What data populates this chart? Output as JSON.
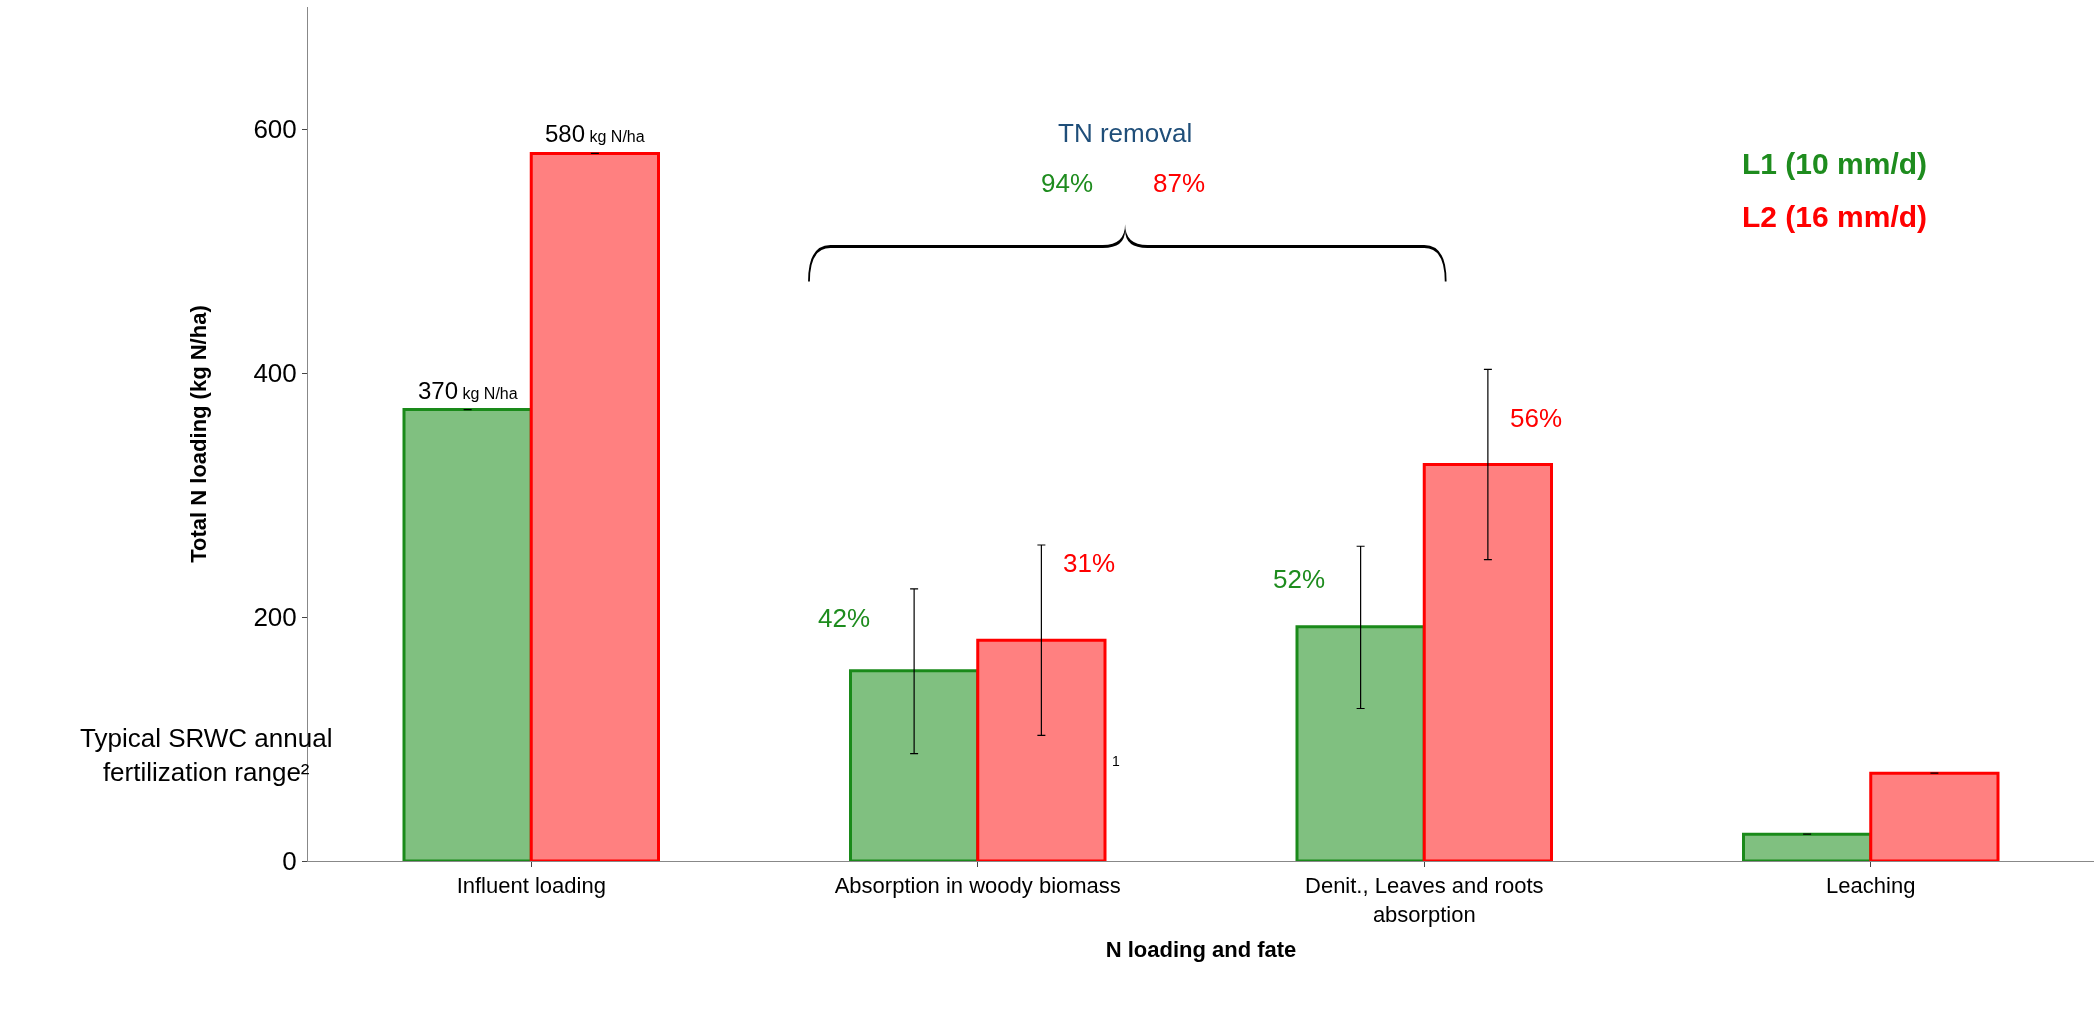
{
  "chart_data": {
    "type": "bar",
    "xlabel": "N loading and fate",
    "ylabel": "Total N loading (kg N/ha)",
    "categories": [
      "Influent loading",
      "Absorption in woody biomass",
      "Denit., Leaves and roots absorption",
      "Leaching"
    ],
    "series": [
      {
        "name": "L1 (10 mm/d)",
        "color": "#80c080",
        "values": [
          370,
          156,
          192,
          22
        ],
        "errors": [
          0,
          [
            88,
            223
          ],
          [
            125,
            258
          ],
          0
        ],
        "value_labels": [
          "370 kg N/ha",
          null,
          null,
          null
        ]
      },
      {
        "name": "L2 (16 mm/d)",
        "color": "#ff8080",
        "values": [
          580,
          181,
          325,
          72
        ],
        "errors": [
          0,
          [
            103,
            259
          ],
          [
            247,
            403
          ],
          0
        ],
        "value_labels": [
          "580 kg N/ha",
          null,
          null,
          null
        ]
      }
    ],
    "annotations": [
      "TN removal",
      "94%",
      "87%",
      "42%",
      "31%",
      "52%",
      "56%",
      "Typical SRWC annual fertilization range²",
      "1"
    ],
    "ylim": [
      0,
      700
    ],
    "yticks": [
      0,
      200,
      400,
      600
    ],
    "legend": "top right"
  }
}
